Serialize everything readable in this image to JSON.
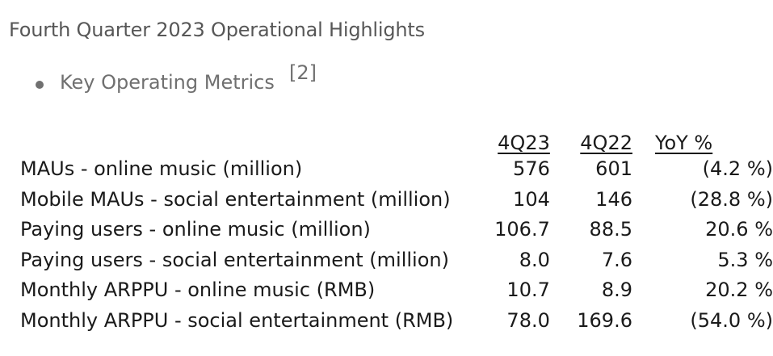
{
  "title": "Fourth Quarter 2023 Operational Highlights",
  "bullet": {
    "text": "Key Operating Metrics",
    "footnote": "[2]"
  },
  "table": {
    "headers": [
      "4Q23",
      "4Q22",
      "YoY %"
    ],
    "rows": [
      {
        "label": "MAUs - online music (million)",
        "q4_23": "576",
        "q4_22": "601",
        "yoy": "(4.2 %)"
      },
      {
        "label": "Mobile MAUs - social entertainment (million)",
        "q4_23": "104",
        "q4_22": "146",
        "yoy": "(28.8 %)"
      },
      {
        "label": "Paying users - online music (million)",
        "q4_23": "106.7",
        "q4_22": "88.5",
        "yoy": "20.6 %"
      },
      {
        "label": "Paying users - social entertainment (million)",
        "q4_23": "8.0",
        "q4_22": "7.6",
        "yoy": "5.3 %"
      },
      {
        "label": "Monthly ARPPU - online music (RMB)",
        "q4_23": "10.7",
        "q4_22": "8.9",
        "yoy": "20.2 %"
      },
      {
        "label": "Monthly ARPPU - social entertainment (RMB)",
        "q4_23": "78.0",
        "q4_22": "169.6",
        "yoy": "(54.0 %)"
      }
    ]
  },
  "colors": {
    "title": "#575757",
    "bullet": "#707070",
    "table_text": "#1a1a1a"
  }
}
